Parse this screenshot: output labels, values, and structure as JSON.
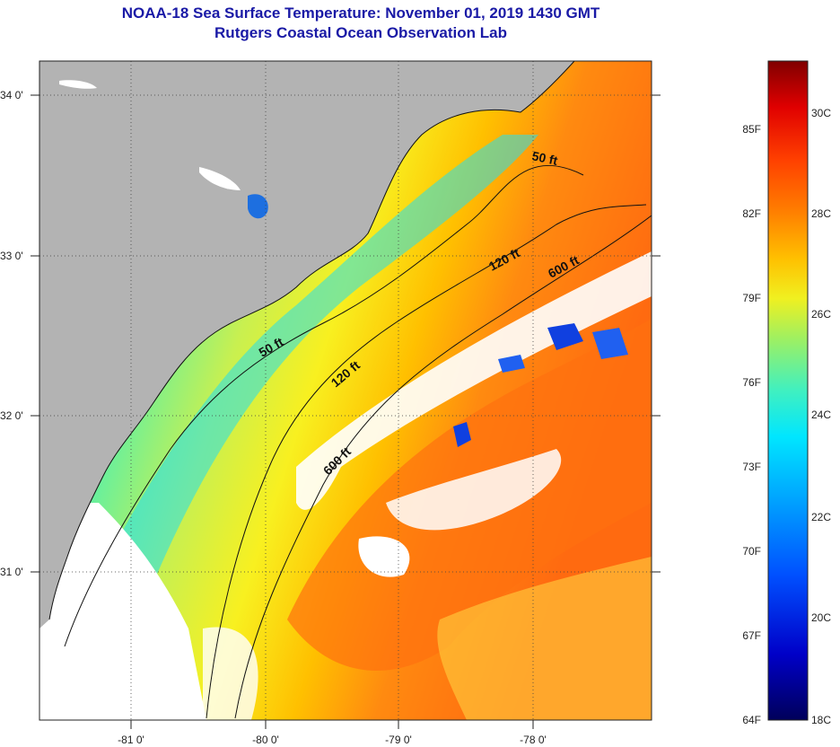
{
  "header": {
    "title_line1": "NOAA-18 Sea Surface Temperature:  November 01, 2019 1430 GMT",
    "title_line2": "Rutgers Coastal Ocean Observation Lab"
  },
  "map": {
    "longitude_labels": [
      "-81 0'",
      "-80 0'",
      "-79 0'",
      "-78 0'"
    ],
    "latitude_labels": [
      "34 0'",
      "33 0'",
      "32 0'",
      "31 0'"
    ],
    "contour_labels": {
      "north_50": "50 ft",
      "south_50": "50 ft",
      "north_120": "120 ft",
      "south_120": "120 ft",
      "north_600": "600 ft",
      "south_600": "600 ft"
    }
  },
  "colorbar": {
    "fahrenheit_labels": [
      "85F",
      "82F",
      "79F",
      "76F",
      "73F",
      "70F",
      "67F",
      "64F"
    ],
    "celsius_labels": [
      "30C",
      "28C",
      "26C",
      "24C",
      "22C",
      "20C",
      "18C"
    ],
    "colors": [
      "#00005a",
      "#0000c8",
      "#0050ff",
      "#00a0ff",
      "#00e6ff",
      "#40f0c0",
      "#a0f060",
      "#f0f020",
      "#ffc000",
      "#ff8000",
      "#ff4000",
      "#e00000",
      "#800000"
    ]
  },
  "colors": {
    "land": "#b3b3b3",
    "cloud": "#ffffff",
    "title": "#1a1aa6"
  }
}
